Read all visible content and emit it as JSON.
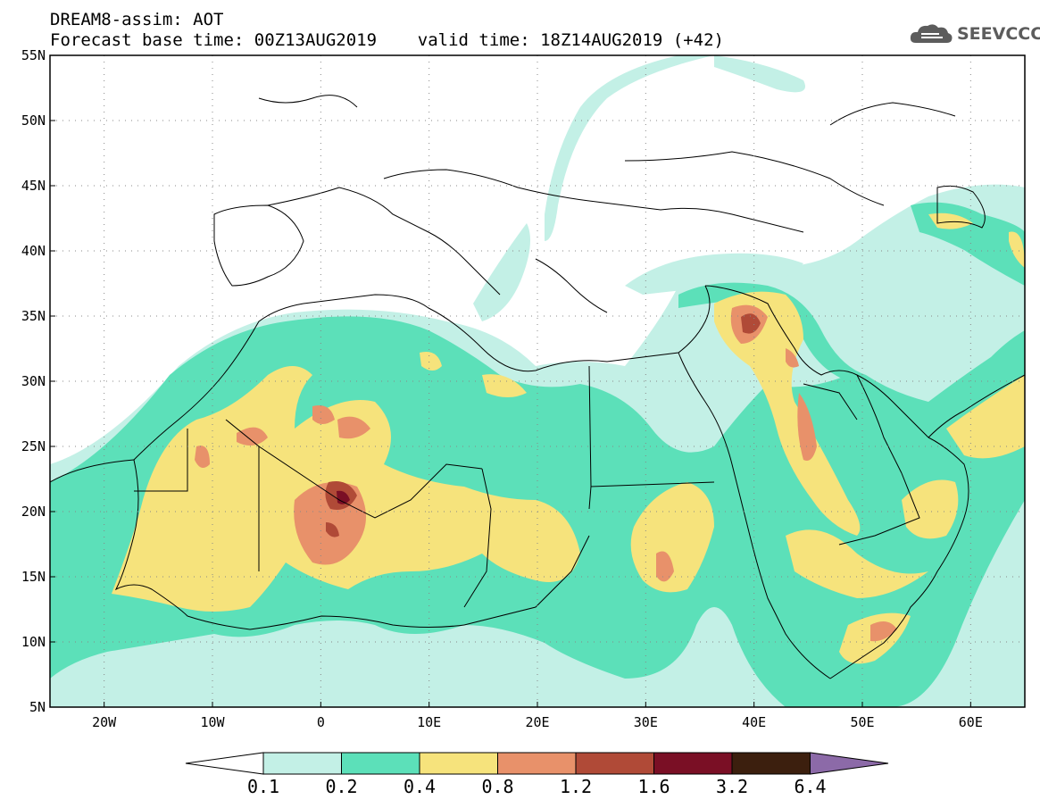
{
  "header": {
    "title_line1": "DREAM8-assim: AOT",
    "title_line2": "Forecast base time: 00Z13AUG2019    valid time: 18Z14AUG2019 (+42)",
    "logo_text": "SEEVCCC"
  },
  "map": {
    "lon_range": [
      -25,
      65
    ],
    "lat_range": [
      5,
      55
    ],
    "lon_ticks": [
      {
        "value": -20,
        "label": "20W"
      },
      {
        "value": -10,
        "label": "10W"
      },
      {
        "value": 0,
        "label": "0"
      },
      {
        "value": 10,
        "label": "10E"
      },
      {
        "value": 20,
        "label": "20E"
      },
      {
        "value": 30,
        "label": "30E"
      },
      {
        "value": 40,
        "label": "40E"
      },
      {
        "value": 50,
        "label": "50E"
      },
      {
        "value": 60,
        "label": "60E"
      }
    ],
    "lat_ticks": [
      {
        "value": 55,
        "label": "55N"
      },
      {
        "value": 50,
        "label": "50N"
      },
      {
        "value": 45,
        "label": "45N"
      },
      {
        "value": 40,
        "label": "40N"
      },
      {
        "value": 35,
        "label": "35N"
      },
      {
        "value": 30,
        "label": "30N"
      },
      {
        "value": 25,
        "label": "25N"
      },
      {
        "value": 20,
        "label": "20N"
      },
      {
        "value": 15,
        "label": "15N"
      },
      {
        "value": 10,
        "label": "10N"
      },
      {
        "value": 5,
        "label": "5N"
      }
    ],
    "grid": "dotted"
  },
  "colorbar": {
    "bins": [
      {
        "color": "#ffffff"
      },
      {
        "color": "#c3f0e6"
      },
      {
        "color": "#5ce0b9"
      },
      {
        "color": "#f6e37c"
      },
      {
        "color": "#e8916a"
      },
      {
        "color": "#b04a37"
      },
      {
        "color": "#7a0f25"
      },
      {
        "color": "#3c1f0e"
      },
      {
        "color": "#8c6aa8"
      }
    ],
    "labels": [
      "0.1",
      "0.2",
      "0.4",
      "0.8",
      "1.2",
      "1.6",
      "3.2",
      "6.4"
    ]
  }
}
